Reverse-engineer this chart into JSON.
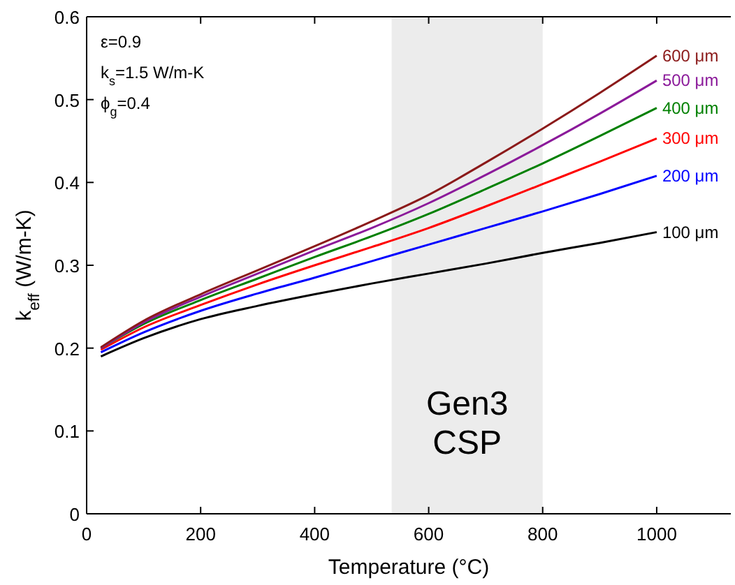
{
  "chart_data": {
    "type": "line",
    "xlabel": "Temperature (°C)",
    "ylabel": "k$_{eff}$ (W/m-K)",
    "x": [
      25,
      100,
      200,
      300,
      400,
      500,
      600,
      700,
      800,
      900,
      1000
    ],
    "series": [
      {
        "name": "100 μm",
        "color": "#000000",
        "values": [
          0.19,
          0.212,
          0.235,
          0.251,
          0.265,
          0.278,
          0.29,
          0.302,
          0.315,
          0.327,
          0.34
        ]
      },
      {
        "name": "200 μm",
        "color": "#0000ff",
        "values": [
          0.195,
          0.219,
          0.245,
          0.266,
          0.285,
          0.305,
          0.325,
          0.345,
          0.365,
          0.386,
          0.408
        ]
      },
      {
        "name": "300 μm",
        "color": "#ff0000",
        "values": [
          0.198,
          0.225,
          0.252,
          0.277,
          0.3,
          0.322,
          0.345,
          0.371,
          0.398,
          0.425,
          0.453
        ]
      },
      {
        "name": "400 μm",
        "color": "#008000",
        "values": [
          0.2,
          0.229,
          0.258,
          0.284,
          0.31,
          0.335,
          0.362,
          0.392,
          0.423,
          0.456,
          0.49
        ]
      },
      {
        "name": "500 μm",
        "color": "#8b1a9a",
        "values": [
          0.2,
          0.231,
          0.262,
          0.29,
          0.318,
          0.345,
          0.375,
          0.409,
          0.445,
          0.483,
          0.523
        ]
      },
      {
        "name": "600 μm",
        "color": "#8b1a1a",
        "values": [
          0.201,
          0.233,
          0.265,
          0.294,
          0.323,
          0.353,
          0.385,
          0.424,
          0.465,
          0.508,
          0.553
        ]
      }
    ],
    "xlim": [
      0,
      1130
    ],
    "ylim": [
      0,
      0.6
    ],
    "xticks": [
      0,
      200,
      400,
      600,
      800,
      1000
    ],
    "yticks": [
      0,
      0.1,
      0.2,
      0.3,
      0.4,
      0.5,
      0.6
    ],
    "grid": false,
    "legend": false,
    "line_style": "solid",
    "marker": "none",
    "bands": [
      {
        "axis": "x",
        "from": 535,
        "to": 800,
        "label": "Gen3 CSP",
        "color": "#ececec"
      }
    ],
    "annotations": [
      "ε=0.9",
      "k$_{s}$=1.5 W/m-K",
      "ϕ$_{g}$=0.4"
    ]
  }
}
